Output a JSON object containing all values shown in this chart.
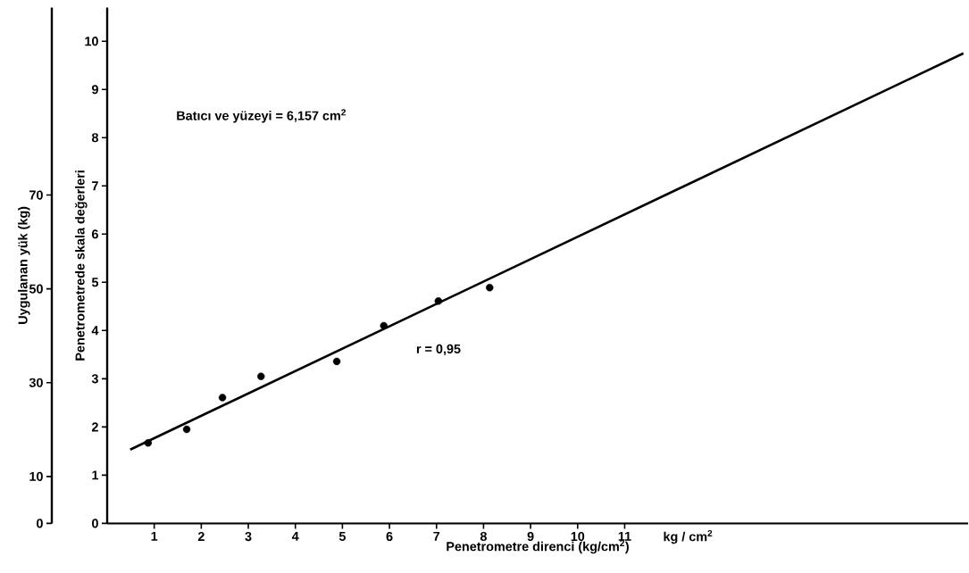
{
  "chart_data": {
    "type": "scatter",
    "xlabel": "Penetrometre direnci (kg/cm$^{2}$)",
    "ylabel": "Penetrometrede skala değerleri",
    "y2label": "Uygulanan yük (kg)",
    "annotations": [
      "Batıcı ve yüzeyi = 6,157 cm$^{2}$",
      "r = 0,95",
      "kg / cm$^{2}$"
    ],
    "series": [
      {
        "type": "scatter",
        "marker": "circle",
        "color": "#000000",
        "x": [
          0.87,
          1.69,
          2.45,
          3.27,
          4.88,
          5.88,
          7.04,
          8.13
        ],
        "values": [
          1.67,
          1.95,
          2.61,
          3.05,
          3.36,
          4.1,
          4.61,
          4.89
        ]
      },
      {
        "type": "line",
        "line_style": "solid",
        "color": "#000000",
        "x": [
          0.49,
          18.2
        ],
        "values": [
          1.53,
          9.75
        ]
      }
    ],
    "xlim": [
      0,
      18.3
    ],
    "ylim": [
      0,
      10.7
    ],
    "y2lim": [
      0,
      110
    ],
    "xticks": [
      1,
      2,
      3,
      4,
      5,
      6,
      7,
      8,
      9,
      10,
      11
    ],
    "yticks": [
      0,
      1,
      2,
      3,
      4,
      5,
      6,
      7,
      8,
      9,
      10
    ],
    "y2ticks": [
      0,
      10,
      30,
      50,
      70
    ]
  }
}
